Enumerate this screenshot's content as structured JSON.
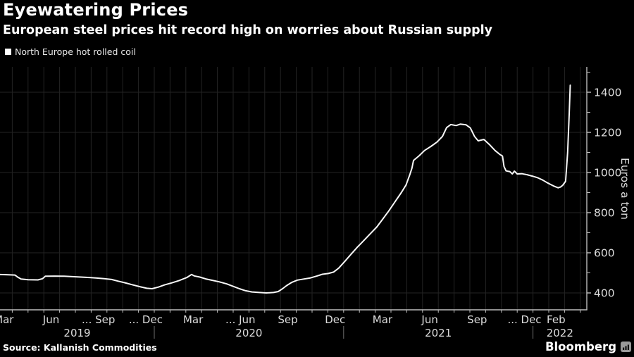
{
  "header": {
    "title": "Eyewatering Prices",
    "subtitle": "European steel prices hit record high on worries about Russian supply"
  },
  "legend": {
    "marker_color": "#ffffff",
    "label": "North Europe hot rolled coil"
  },
  "footer": {
    "source": "Source: Kallanish Commodities",
    "brand": "Bloomberg",
    "brand_icon": "bar-chart-icon"
  },
  "chart_data": {
    "type": "line",
    "title": "Eyewatering Prices",
    "series_name": "North Europe hot rolled coil",
    "ylabel": "Euros a ton",
    "line_color": "#f7f7f7",
    "grid_color": "#232323",
    "axis_color": "#bdbdbd",
    "text_color": "#dcdcdc",
    "divider_color": "#6e6e6e",
    "background_color": "#000000",
    "grid": true,
    "legend_position": "top-left",
    "y_axis": {
      "side": "right",
      "labeled_ticks": [
        400,
        600,
        800,
        1000,
        1200,
        1400
      ],
      "minor_tick_step": 100,
      "minor_tick_min": 400,
      "minor_tick_max": 1500
    },
    "x_axis": {
      "start": "2019-03-01",
      "end": "2022-04-20",
      "tick_labels": [
        {
          "label": "Mar",
          "date": "2019-03-15"
        },
        {
          "label": "Jun",
          "date": "2019-06-15"
        },
        {
          "label": "... Sep",
          "date": "2019-09-15"
        },
        {
          "label": "... Dec",
          "date": "2019-12-15"
        },
        {
          "label": "Mar",
          "date": "2020-03-15"
        },
        {
          "label": "... Jun",
          "date": "2020-06-15"
        },
        {
          "label": "Sep",
          "date": "2020-09-15"
        },
        {
          "label": "Dec",
          "date": "2020-12-15"
        },
        {
          "label": "Mar",
          "date": "2021-03-15"
        },
        {
          "label": "Jun",
          "date": "2021-06-15"
        },
        {
          "label": "Sep",
          "date": "2021-09-15"
        },
        {
          "label": "... Dec",
          "date": "2021-12-15"
        },
        {
          "label": "Feb",
          "date": "2022-02-15"
        }
      ],
      "year_labels": [
        {
          "label": "2019",
          "from": "2019-03-01",
          "to": "2020-01-01"
        },
        {
          "label": "2020",
          "from": "2020-01-01",
          "to": "2021-01-01"
        },
        {
          "label": "2021",
          "from": "2021-01-01",
          "to": "2022-01-01"
        },
        {
          "label": "2022",
          "from": "2022-01-01",
          "to": "2022-04-20"
        }
      ]
    },
    "points": [
      [
        "2019-03-01",
        492
      ],
      [
        "2019-03-20",
        491
      ],
      [
        "2019-04-06",
        489
      ],
      [
        "2019-04-12",
        478
      ],
      [
        "2019-04-18",
        469
      ],
      [
        "2019-05-01",
        466
      ],
      [
        "2019-05-20",
        465
      ],
      [
        "2019-05-29",
        471
      ],
      [
        "2019-06-04",
        483
      ],
      [
        "2019-06-22",
        484
      ],
      [
        "2019-07-10",
        483
      ],
      [
        "2019-07-26",
        481
      ],
      [
        "2019-08-12",
        479
      ],
      [
        "2019-08-28",
        477
      ],
      [
        "2019-09-12",
        474
      ],
      [
        "2019-09-26",
        471
      ],
      [
        "2019-10-10",
        467
      ],
      [
        "2019-10-22",
        459
      ],
      [
        "2019-11-05",
        451
      ],
      [
        "2019-11-19",
        441
      ],
      [
        "2019-12-05",
        430
      ],
      [
        "2019-12-17",
        423
      ],
      [
        "2019-12-27",
        421
      ],
      [
        "2020-01-09",
        429
      ],
      [
        "2020-01-21",
        440
      ],
      [
        "2020-02-04",
        450
      ],
      [
        "2020-02-18",
        461
      ],
      [
        "2020-03-03",
        477
      ],
      [
        "2020-03-12",
        492
      ],
      [
        "2020-03-17",
        485
      ],
      [
        "2020-03-28",
        479
      ],
      [
        "2020-04-09",
        470
      ],
      [
        "2020-04-21",
        463
      ],
      [
        "2020-05-05",
        455
      ],
      [
        "2020-05-19",
        445
      ],
      [
        "2020-06-02",
        432
      ],
      [
        "2020-06-13",
        421
      ],
      [
        "2020-06-25",
        411
      ],
      [
        "2020-07-07",
        405
      ],
      [
        "2020-07-21",
        402
      ],
      [
        "2020-08-04",
        400
      ],
      [
        "2020-08-18",
        402
      ],
      [
        "2020-08-27",
        407
      ],
      [
        "2020-09-05",
        421
      ],
      [
        "2020-09-13",
        437
      ],
      [
        "2020-09-23",
        453
      ],
      [
        "2020-10-03",
        464
      ],
      [
        "2020-10-15",
        469
      ],
      [
        "2020-10-27",
        474
      ],
      [
        "2020-11-10",
        484
      ],
      [
        "2020-11-21",
        493
      ],
      [
        "2020-12-02",
        497
      ],
      [
        "2020-12-12",
        504
      ],
      [
        "2020-12-22",
        524
      ],
      [
        "2021-01-05",
        562
      ],
      [
        "2021-01-15",
        592
      ],
      [
        "2021-01-27",
        627
      ],
      [
        "2021-02-09",
        660
      ],
      [
        "2021-02-20",
        690
      ],
      [
        "2021-03-04",
        728
      ],
      [
        "2021-03-16",
        770
      ],
      [
        "2021-03-27",
        808
      ],
      [
        "2021-04-09",
        855
      ],
      [
        "2021-04-21",
        900
      ],
      [
        "2021-04-30",
        938
      ],
      [
        "2021-05-07",
        990
      ],
      [
        "2021-05-11",
        1022
      ],
      [
        "2021-05-14",
        1060
      ],
      [
        "2021-05-25",
        1084
      ],
      [
        "2021-06-05",
        1110
      ],
      [
        "2021-06-17",
        1130
      ],
      [
        "2021-06-29",
        1152
      ],
      [
        "2021-07-09",
        1180
      ],
      [
        "2021-07-17",
        1224
      ],
      [
        "2021-07-25",
        1239
      ],
      [
        "2021-08-05",
        1234
      ],
      [
        "2021-08-13",
        1241
      ],
      [
        "2021-08-24",
        1238
      ],
      [
        "2021-09-02",
        1222
      ],
      [
        "2021-09-10",
        1180
      ],
      [
        "2021-09-17",
        1158
      ],
      [
        "2021-09-28",
        1165
      ],
      [
        "2021-10-08",
        1140
      ],
      [
        "2021-10-19",
        1110
      ],
      [
        "2021-10-28",
        1091
      ],
      [
        "2021-11-03",
        1082
      ],
      [
        "2021-11-06",
        1030
      ],
      [
        "2021-11-10",
        1008
      ],
      [
        "2021-11-17",
        1005
      ],
      [
        "2021-11-22",
        993
      ],
      [
        "2021-11-26",
        1007
      ],
      [
        "2021-12-01",
        993
      ],
      [
        "2021-12-10",
        994
      ],
      [
        "2021-12-20",
        989
      ],
      [
        "2021-12-30",
        982
      ],
      [
        "2022-01-10",
        974
      ],
      [
        "2022-01-20",
        962
      ],
      [
        "2022-01-28",
        950
      ],
      [
        "2022-02-05",
        940
      ],
      [
        "2022-02-12",
        931
      ],
      [
        "2022-02-19",
        924
      ],
      [
        "2022-02-24",
        928
      ],
      [
        "2022-02-28",
        937
      ],
      [
        "2022-03-03",
        956
      ],
      [
        "2022-03-07",
        1100
      ],
      [
        "2022-03-10",
        1290
      ],
      [
        "2022-03-12",
        1435
      ]
    ]
  }
}
